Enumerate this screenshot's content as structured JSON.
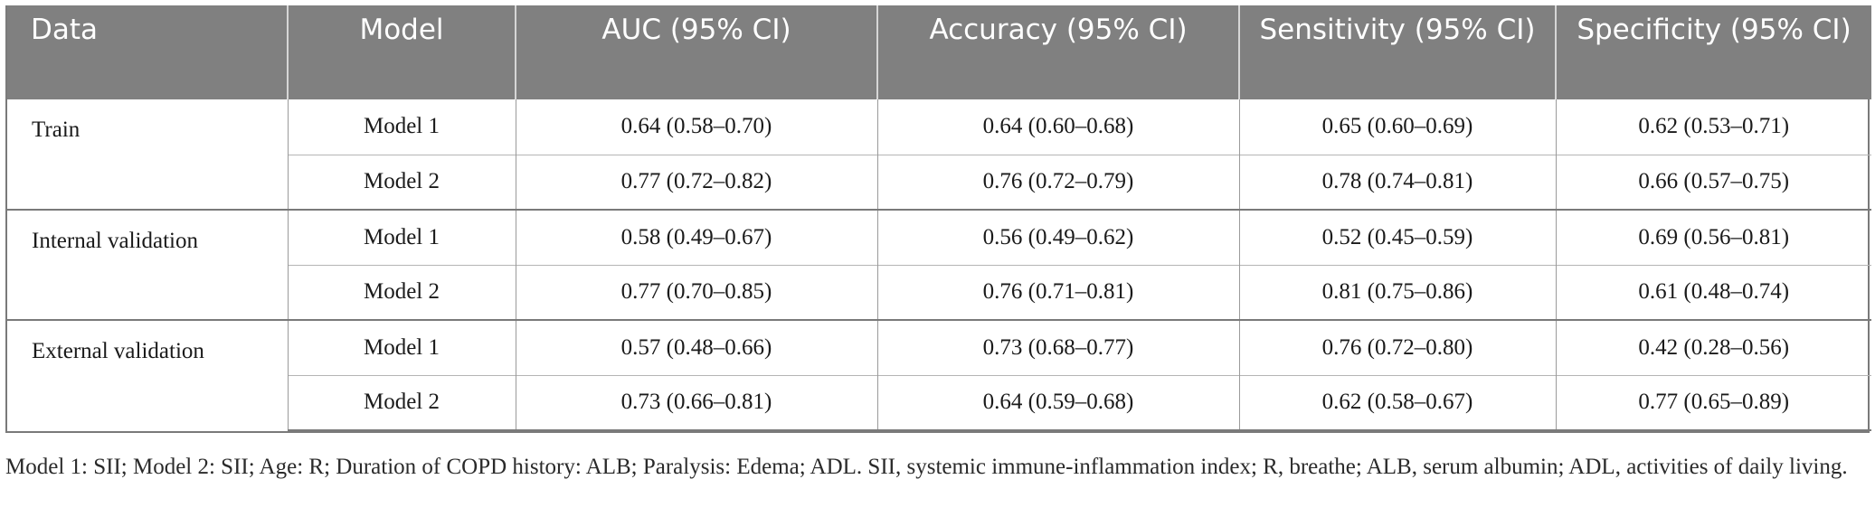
{
  "table": {
    "headers": [
      "Data",
      "Model",
      "AUC (95% CI)",
      "Accuracy (95% CI)",
      "Sensitivity (95% CI)",
      "Specificity (95% CI)"
    ],
    "groups": [
      {
        "data": "Train",
        "rows": [
          {
            "model": "Model 1",
            "auc": "0.64 (0.58–0.70)",
            "accuracy": "0.64 (0.60–0.68)",
            "sensitivity": "0.65 (0.60–0.69)",
            "specificity": "0.62 (0.53–0.71)"
          },
          {
            "model": "Model 2",
            "auc": "0.77 (0.72–0.82)",
            "accuracy": "0.76 (0.72–0.79)",
            "sensitivity": "0.78 (0.74–0.81)",
            "specificity": "0.66 (0.57–0.75)"
          }
        ]
      },
      {
        "data": "Internal validation",
        "rows": [
          {
            "model": "Model 1",
            "auc": "0.58 (0.49–0.67)",
            "accuracy": "0.56 (0.49–0.62)",
            "sensitivity": "0.52 (0.45–0.59)",
            "specificity": "0.69 (0.56–0.81)"
          },
          {
            "model": "Model 2",
            "auc": "0.77 (0.70–0.85)",
            "accuracy": "0.76 (0.71–0.81)",
            "sensitivity": "0.81 (0.75–0.86)",
            "specificity": "0.61 (0.48–0.74)"
          }
        ]
      },
      {
        "data": "External validation",
        "rows": [
          {
            "model": "Model 1",
            "auc": "0.57 (0.48–0.66)",
            "accuracy": "0.73 (0.68–0.77)",
            "sensitivity": "0.76 (0.72–0.80)",
            "specificity": "0.42 (0.28–0.56)"
          },
          {
            "model": "Model 2",
            "auc": "0.73 (0.66–0.81)",
            "accuracy": "0.64 (0.59–0.68)",
            "sensitivity": "0.62 (0.58–0.67)",
            "specificity": "0.77 (0.65–0.89)"
          }
        ]
      }
    ]
  },
  "footnote": "Model 1: SII; Model 2: SII; Age: R; Duration of COPD history: ALB; Paralysis: Edema; ADL. SII, systemic immune-inflammation index; R, breathe; ALB, serum albumin; ADL, activities of daily living."
}
